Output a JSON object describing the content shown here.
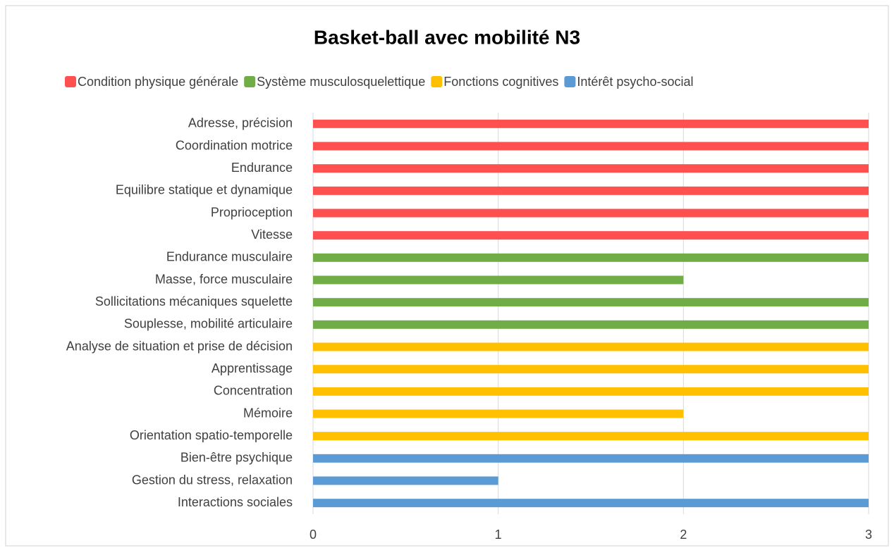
{
  "chart_data": {
    "type": "bar",
    "orientation": "horizontal",
    "title": "Basket-ball avec mobilité N3",
    "categories": [
      "Adresse, précision",
      "Coordination motrice",
      "Endurance",
      "Equilibre statique et dynamique",
      "Proprioception",
      "Vitesse",
      "Endurance musculaire",
      "Masse,  force musculaire",
      "Sollicitations mécaniques squelette",
      "Souplesse, mobilité articulaire",
      "Analyse de situation et prise de décision",
      "Apprentissage",
      "Concentration",
      "Mémoire",
      "Orientation spatio-temporelle",
      "Bien-être psychique",
      "Gestion du stress, relaxation",
      "Interactions sociales"
    ],
    "series": [
      {
        "name": "Condition physique générale",
        "color": "#ff5050",
        "values": [
          3,
          3,
          3,
          3,
          3,
          3,
          null,
          null,
          null,
          null,
          null,
          null,
          null,
          null,
          null,
          null,
          null,
          null
        ]
      },
      {
        "name": "Système musculosquelettique",
        "color": "#70ad47",
        "values": [
          null,
          null,
          null,
          null,
          null,
          null,
          3,
          2,
          3,
          3,
          null,
          null,
          null,
          null,
          null,
          null,
          null,
          null
        ]
      },
      {
        "name": "Fonctions cognitives",
        "color": "#ffc000",
        "values": [
          null,
          null,
          null,
          null,
          null,
          null,
          null,
          null,
          null,
          null,
          3,
          3,
          3,
          2,
          3,
          null,
          null,
          null
        ]
      },
      {
        "name": "Intérêt psycho-social",
        "color": "#5b9bd5",
        "values": [
          null,
          null,
          null,
          null,
          null,
          null,
          null,
          null,
          null,
          null,
          null,
          null,
          null,
          null,
          null,
          3,
          1,
          3
        ]
      }
    ],
    "xlim": [
      0,
      3
    ],
    "xticks": [
      0,
      1,
      2,
      3
    ],
    "grid": true,
    "legend": "top"
  }
}
